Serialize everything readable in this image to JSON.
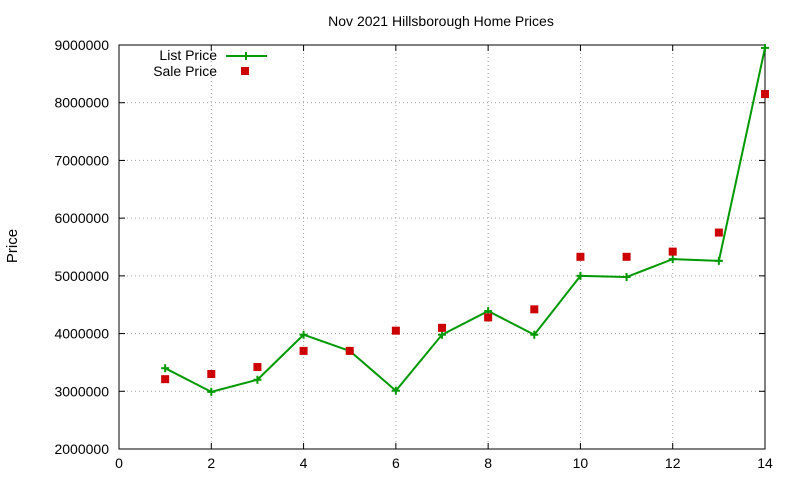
{
  "chart_data": {
    "type": "line",
    "title": "Nov 2021 Hillsborough Home Prices",
    "xlabel": "",
    "ylabel": "Price",
    "xlim": [
      0,
      14
    ],
    "ylim": [
      2000000,
      9000000
    ],
    "x_ticks": [
      0,
      2,
      4,
      6,
      8,
      10,
      12,
      14
    ],
    "y_ticks": [
      2000000,
      3000000,
      4000000,
      5000000,
      6000000,
      7000000,
      8000000,
      9000000
    ],
    "grid": true,
    "legend_position": "top-left",
    "series": [
      {
        "name": "List Price",
        "style": "line-with-plus",
        "color": "#009900",
        "x": [
          1,
          2,
          3,
          4,
          5,
          6,
          7,
          8,
          9,
          10,
          11,
          12,
          13,
          14
        ],
        "y": [
          3400000,
          2990000,
          3200000,
          3980000,
          3700000,
          3010000,
          3980000,
          4390000,
          3980000,
          5000000,
          4980000,
          5290000,
          5260000,
          8950000
        ]
      },
      {
        "name": "Sale Price",
        "style": "square-points",
        "color": "#cc0000",
        "x": [
          1,
          2,
          3,
          4,
          5,
          6,
          7,
          8,
          9,
          10,
          11,
          12,
          13,
          14
        ],
        "y": [
          3210000,
          3300000,
          3420000,
          3700000,
          3700000,
          4050000,
          4100000,
          4280000,
          4420000,
          5330000,
          5330000,
          5420000,
          5750000,
          8150000
        ]
      }
    ]
  }
}
